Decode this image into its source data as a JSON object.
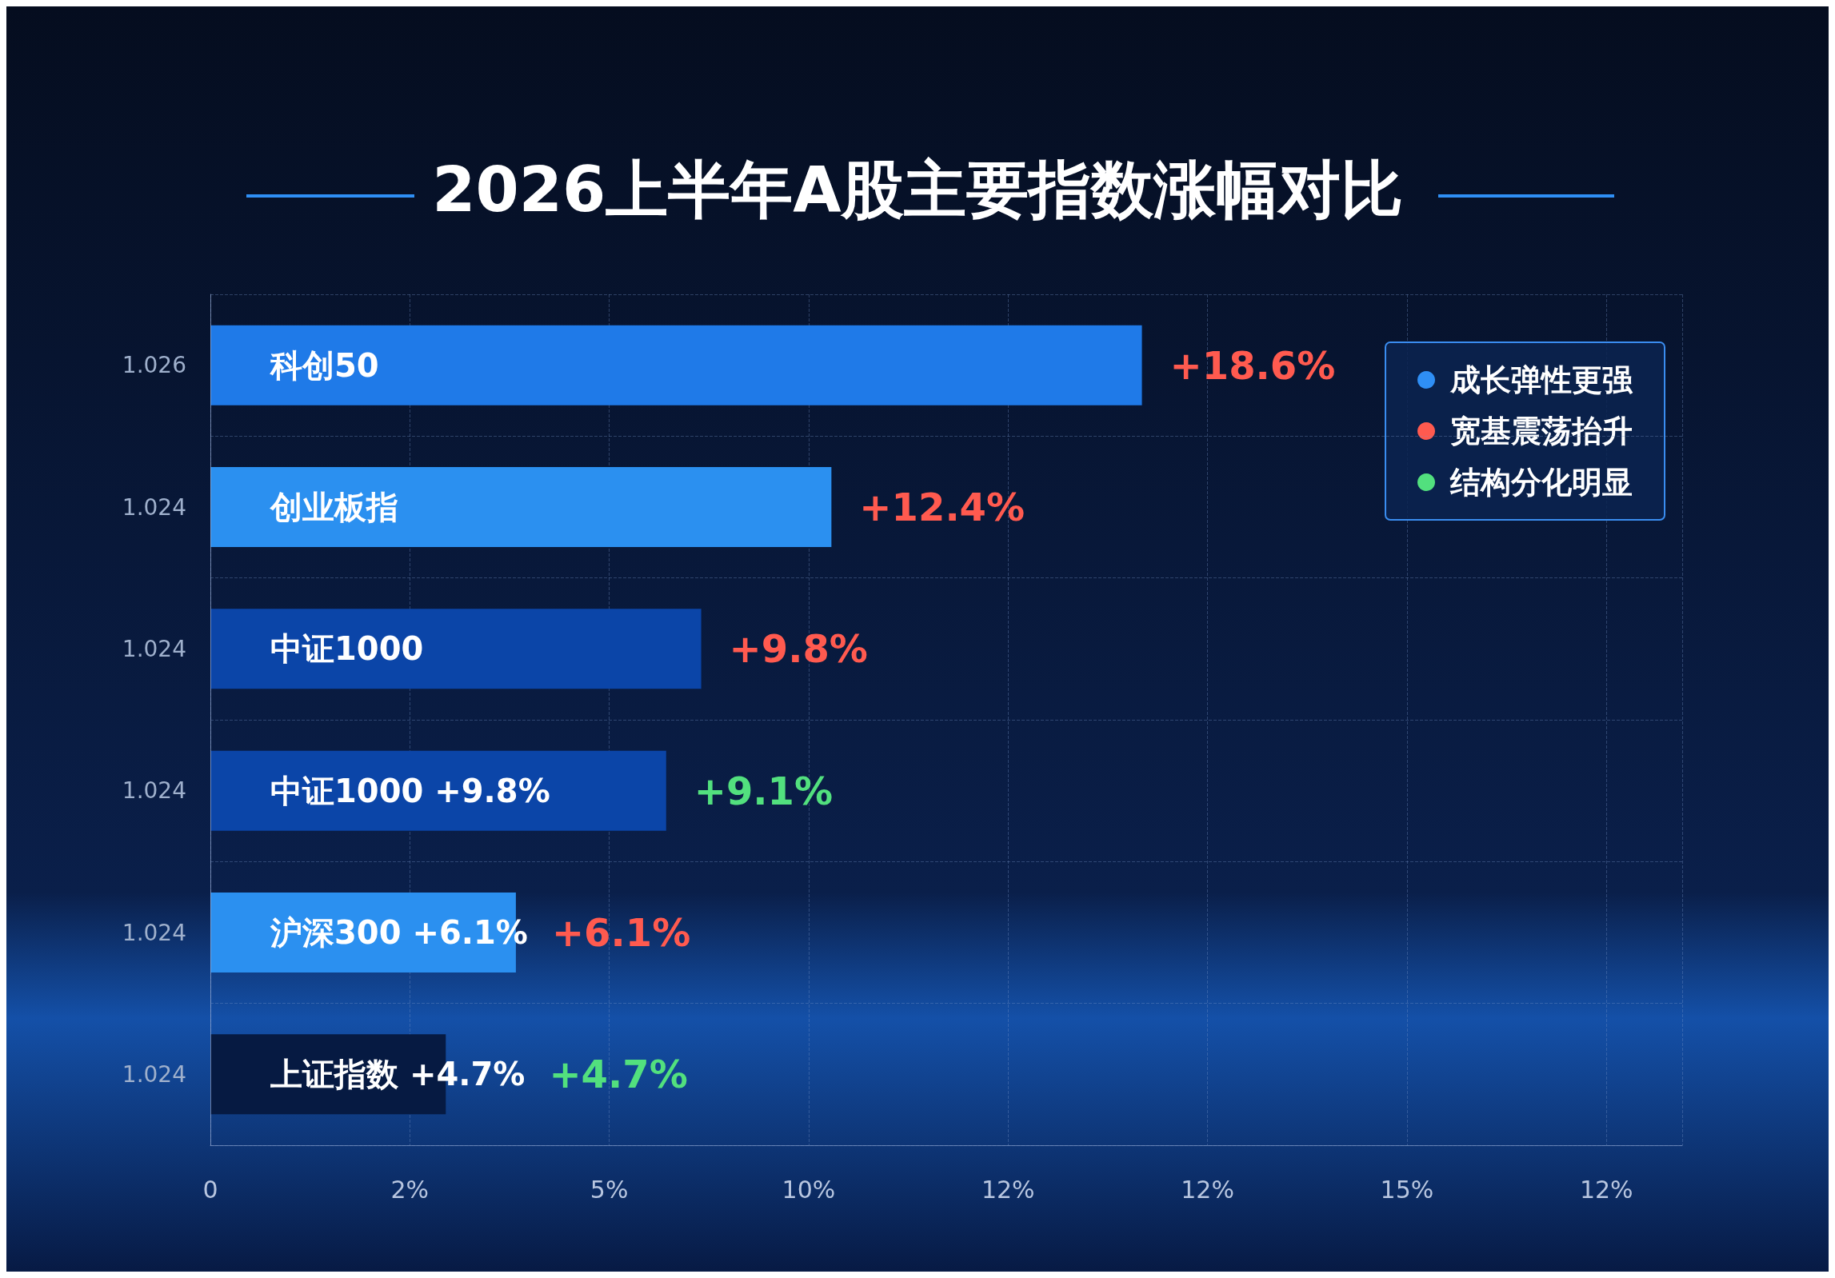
{
  "chart_data": {
    "type": "bar",
    "orientation": "horizontal",
    "stacked": true,
    "title": "2026上半年A股主要指数涨幅对比",
    "categories": [
      "科创50",
      "创业板指",
      "中证1000",
      "中证1000 +9.8%",
      "沪深300 +6.1%",
      "上证指数 +4.7%"
    ],
    "series": [
      {
        "name": "成长弹性更强",
        "color": "#2f8ff5",
        "values": [
          null,
          null,
          null,
          null,
          null,
          null
        ]
      },
      {
        "name": "宽基震荡抬升",
        "color": "#ff5a4f",
        "values": [
          18.6,
          12.4,
          9.8,
          null,
          6.1,
          null
        ],
        "value_labels": [
          "+18.6%",
          "+12.4%",
          "+9.8%",
          null,
          "+6.1%",
          null
        ],
        "colors": [
          "#1f7ae8",
          "#2b90f0",
          "#0b45a8",
          "#0b45a8",
          "#2b90f0",
          "#061a42"
        ]
      },
      {
        "name": "结构分化明显",
        "color": "#52e07e",
        "values": [
          null,
          null,
          null,
          9.1,
          null,
          4.7
        ],
        "value_labels": [
          null,
          null,
          null,
          "+9.1%",
          null,
          "+4.7%"
        ],
        "colors": [
          "#1f7ae8",
          "#2b90f0",
          "#0b45a8",
          "#0b45a8",
          "#2b90f0",
          "#061a42"
        ]
      }
    ],
    "annotations": [
      "1.026",
      "1.024",
      "1.024",
      "1.024",
      "1.024",
      "1.024",
      "0",
      "2%",
      "5%",
      "10%",
      "12%",
      "12%",
      "15%",
      "12%"
    ],
    "grid": true,
    "legend": "top right"
  }
}
